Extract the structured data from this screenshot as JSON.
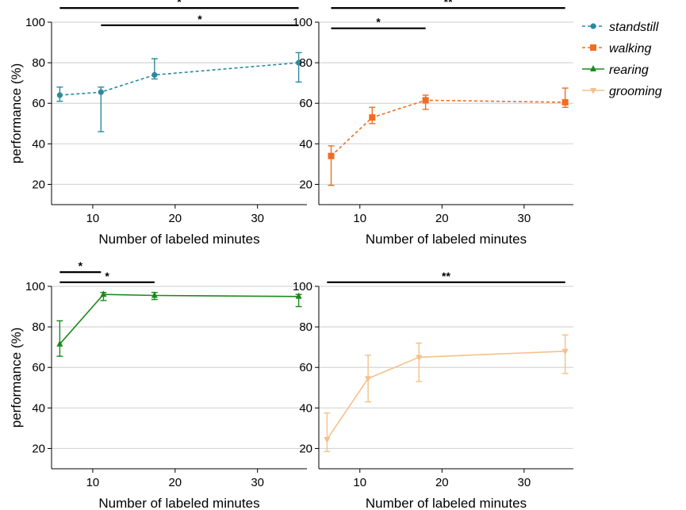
{
  "chart_data": [
    {
      "type": "line",
      "xlabel": "Number of labeled minutes",
      "ylabel": "performance (%)",
      "xlim": [
        5,
        36
      ],
      "ylim": [
        10,
        100
      ],
      "xticks": [
        "10",
        "20",
        "30"
      ],
      "yticks": [
        "20",
        "40",
        "60",
        "80",
        "100"
      ],
      "series": [
        {
          "name": "standstill",
          "color": "#2a8b9c",
          "dashed": true,
          "marker": "circle",
          "points": [
            {
              "x": 6,
              "y": 64,
              "lo": 61,
              "hi": 68
            },
            {
              "x": 11,
              "y": 65.5,
              "lo": 46,
              "hi": 68
            },
            {
              "x": 17.5,
              "y": 74,
              "lo": 72,
              "hi": 82
            },
            {
              "x": 35,
              "y": 80,
              "lo": 70.5,
              "hi": 85
            }
          ]
        }
      ],
      "significance": [
        {
          "label": "*",
          "x1": 6,
          "x2": 35,
          "y": 107
        },
        {
          "label": "*",
          "x1": 11,
          "x2": 35,
          "y": 98.5
        }
      ]
    },
    {
      "type": "line",
      "xlabel": "Number of labeled minutes",
      "ylabel": "",
      "xlim": [
        5,
        36
      ],
      "ylim": [
        10,
        100
      ],
      "xticks": [
        "10",
        "20",
        "30"
      ],
      "yticks": [
        "20",
        "40",
        "60",
        "80",
        "100"
      ],
      "series": [
        {
          "name": "walking",
          "color": "#f26c22",
          "dashed": true,
          "marker": "square",
          "points": [
            {
              "x": 6.5,
              "y": 34,
              "lo": 19.5,
              "hi": 39
            },
            {
              "x": 11.5,
              "y": 53,
              "lo": 50,
              "hi": 58
            },
            {
              "x": 18,
              "y": 61.5,
              "lo": 57,
              "hi": 64
            },
            {
              "x": 35,
              "y": 60.5,
              "lo": 58,
              "hi": 67.5
            }
          ]
        }
      ],
      "significance": [
        {
          "label": "**",
          "x1": 6.5,
          "x2": 35,
          "y": 107
        },
        {
          "label": "*",
          "x1": 6.5,
          "x2": 18,
          "y": 97
        }
      ]
    },
    {
      "type": "line",
      "xlabel": "Number of labeled minutes",
      "ylabel": "performance (%)",
      "xlim": [
        5,
        36
      ],
      "ylim": [
        10,
        100
      ],
      "xticks": [
        "10",
        "20",
        "30"
      ],
      "yticks": [
        "20",
        "40",
        "60",
        "80",
        "100"
      ],
      "series": [
        {
          "name": "rearing",
          "color": "#1c8a1c",
          "dashed": false,
          "marker": "triangle-up",
          "points": [
            {
              "x": 6,
              "y": 71.5,
              "lo": 65.5,
              "hi": 83
            },
            {
              "x": 11.3,
              "y": 96,
              "lo": 93,
              "hi": 97
            },
            {
              "x": 17.5,
              "y": 95.5,
              "lo": 93.5,
              "hi": 97
            },
            {
              "x": 35,
              "y": 95,
              "lo": 90,
              "hi": 96
            }
          ]
        }
      ],
      "significance": [
        {
          "label": "*",
          "x1": 6,
          "x2": 11,
          "y": 107
        },
        {
          "label": "*",
          "x1": 6,
          "x2": 17.5,
          "y": 102
        }
      ]
    },
    {
      "type": "line",
      "xlabel": "Number of labeled minutes",
      "ylabel": "",
      "xlim": [
        5,
        36
      ],
      "ylim": [
        10,
        100
      ],
      "xticks": [
        "10",
        "20",
        "30"
      ],
      "yticks": [
        "20",
        "40",
        "60",
        "80",
        "100"
      ],
      "series": [
        {
          "name": "grooming",
          "color": "#f5c08a",
          "dashed": false,
          "marker": "triangle-down",
          "points": [
            {
              "x": 6,
              "y": 24.5,
              "lo": 18.5,
              "hi": 37.5
            },
            {
              "x": 11,
              "y": 54.5,
              "lo": 43,
              "hi": 66
            },
            {
              "x": 17.2,
              "y": 65,
              "lo": 53,
              "hi": 72
            },
            {
              "x": 35,
              "y": 68,
              "lo": 57,
              "hi": 76
            }
          ]
        }
      ],
      "significance": [
        {
          "label": "**",
          "x1": 6,
          "x2": 35,
          "y": 102
        }
      ]
    }
  ],
  "legend": [
    {
      "label": "standstill",
      "color": "#2a8b9c",
      "dashed": true,
      "marker": "circle"
    },
    {
      "label": "walking",
      "color": "#f26c22",
      "dashed": true,
      "marker": "square"
    },
    {
      "label": "rearing",
      "color": "#1c8a1c",
      "dashed": false,
      "marker": "triangle-up"
    },
    {
      "label": "grooming",
      "color": "#f5c08a",
      "dashed": false,
      "marker": "triangle-down"
    }
  ]
}
